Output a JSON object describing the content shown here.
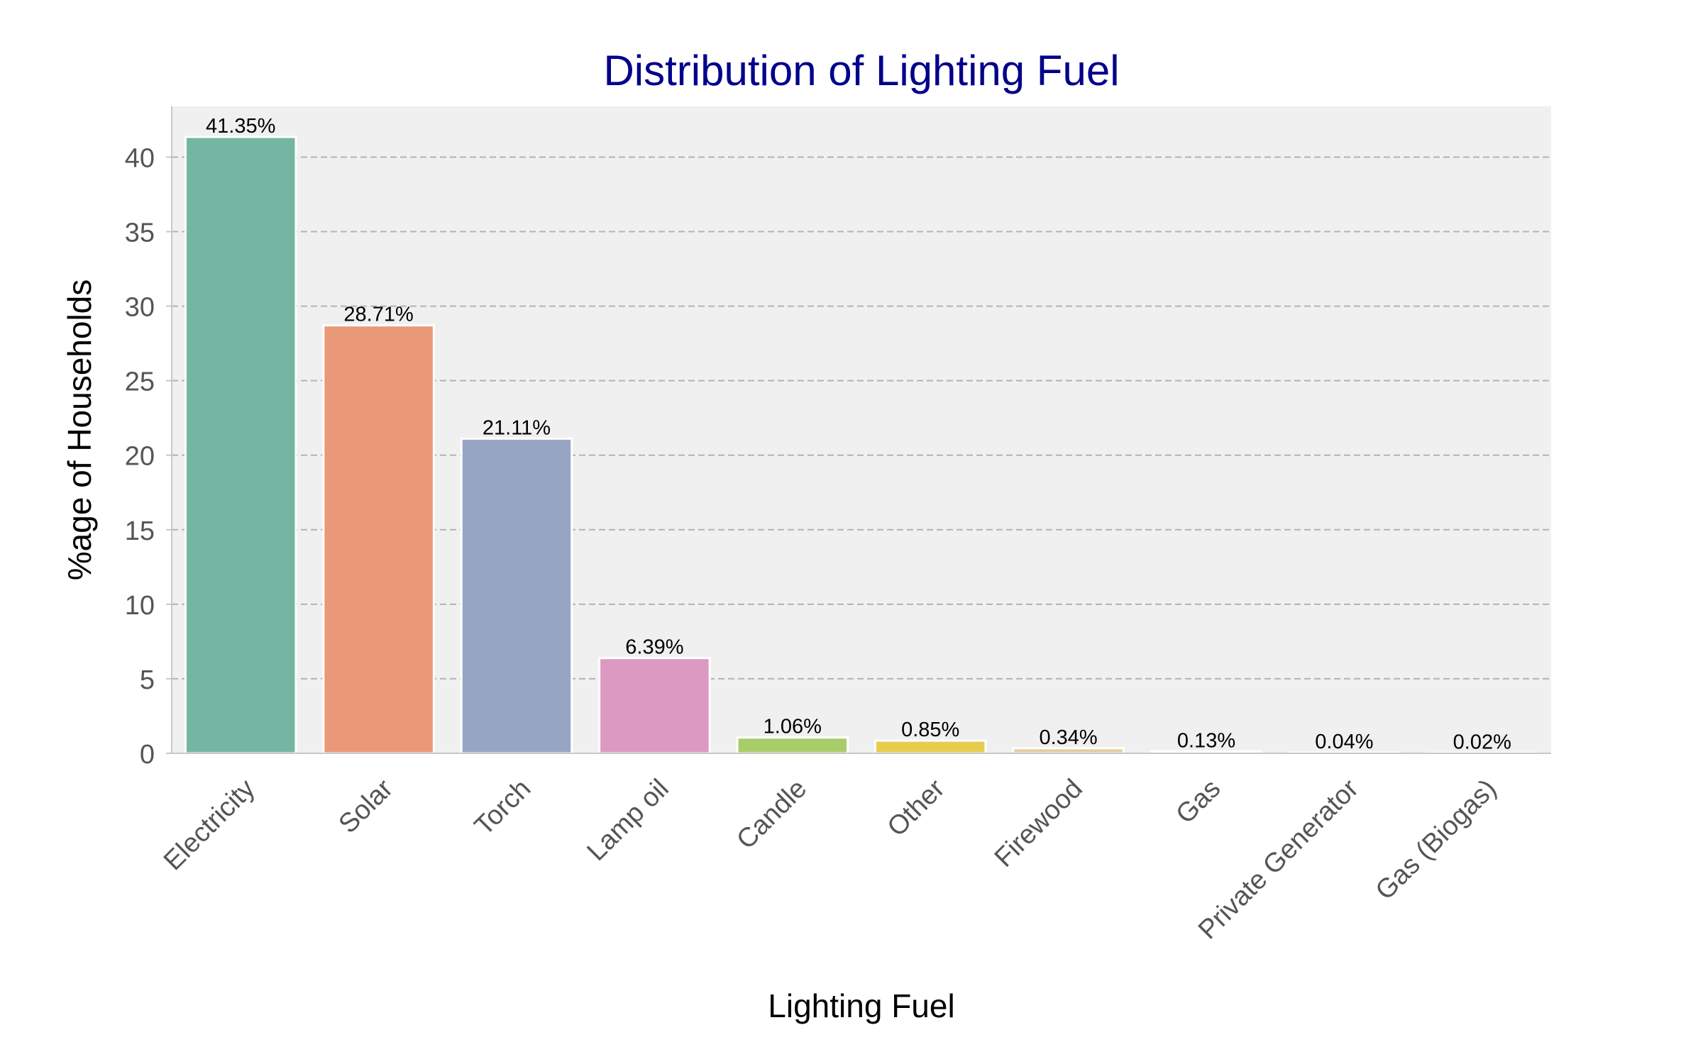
{
  "chart_data": {
    "type": "bar",
    "title": "Distribution of Lighting Fuel",
    "xlabel": "Lighting Fuel",
    "ylabel": "%age of Households",
    "categories": [
      "Electricity",
      "Solar",
      "Torch",
      "Lamp oil",
      "Candle",
      "Other",
      "Firewood",
      "Gas",
      "Private Generator",
      "Gas (Biogas)"
    ],
    "values": [
      41.35,
      28.71,
      21.11,
      6.39,
      1.06,
      0.85,
      0.34,
      0.13,
      0.04,
      0.02
    ],
    "data_labels": [
      "41.35%",
      "28.71%",
      "21.11%",
      "6.39%",
      "1.06%",
      "0.85%",
      "0.34%",
      "0.13%",
      "0.04%",
      "0.02%"
    ],
    "colors": [
      "#74b6a1",
      "#e99978",
      "#97a5c5",
      "#dc99c2",
      "#a8cc69",
      "#e8cc4f",
      "#e3cc9c",
      "#bcbcbc",
      "#bcbcbc",
      "#bcbcbc"
    ],
    "yticks": [
      0,
      5,
      10,
      15,
      20,
      25,
      30,
      35,
      40
    ],
    "ylim": [
      0,
      43.4
    ],
    "grid": true,
    "grid_axis": "y",
    "plot_background": "#f0f0f0",
    "title_color": "#00008b",
    "x_tick_rotation_deg": 45
  }
}
